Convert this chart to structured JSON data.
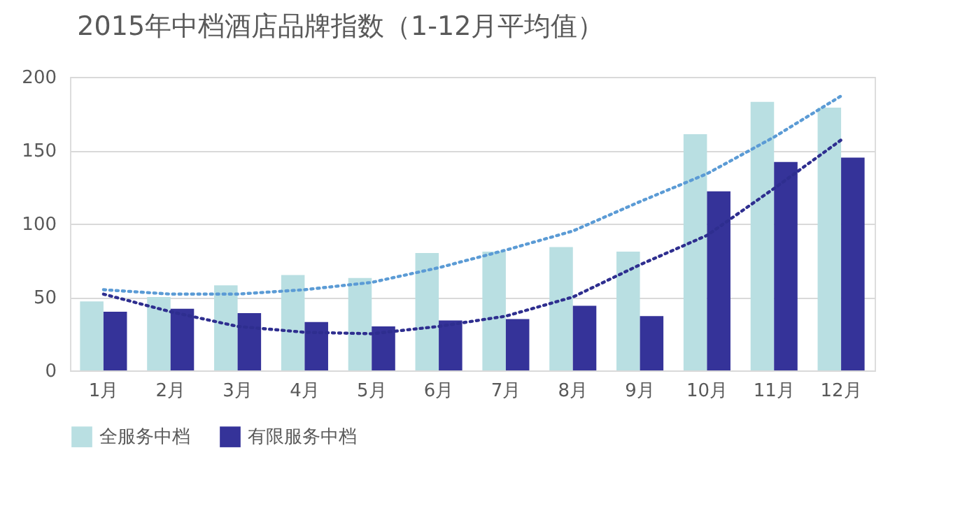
{
  "chart_data": {
    "type": "bar",
    "title": "2015年中档酒店品牌指数（1-12月平均值）",
    "categories": [
      "1月",
      "2月",
      "3月",
      "4月",
      "5月",
      "6月",
      "7月",
      "8月",
      "9月",
      "10月",
      "11月",
      "12月"
    ],
    "series": [
      {
        "name": "全服务中档",
        "color": "#b9dfe2",
        "values": [
          47,
          50,
          58,
          65,
          63,
          80,
          81,
          84,
          81,
          161,
          183,
          179
        ]
      },
      {
        "name": "有限服务中档",
        "color": "#353399",
        "values": [
          40,
          42,
          39,
          33,
          30,
          34,
          35,
          44,
          37,
          122,
          142,
          145
        ]
      },
      {
        "type": "line",
        "color": "#5b9bd5",
        "line_style": "dotted",
        "values": [
          55,
          52,
          52,
          55,
          60,
          70,
          82,
          95,
          115,
          134,
          159,
          187
        ]
      },
      {
        "type": "line",
        "color": "#2e2e8f",
        "line_style": "dotted",
        "values": [
          52,
          40,
          30,
          26,
          25,
          30,
          37,
          50,
          72,
          92,
          124,
          157
        ]
      }
    ],
    "ylim": [
      0,
      200
    ],
    "yticks": [
      0,
      50,
      100,
      150,
      200
    ],
    "grid": "y",
    "legend": "bottom"
  }
}
